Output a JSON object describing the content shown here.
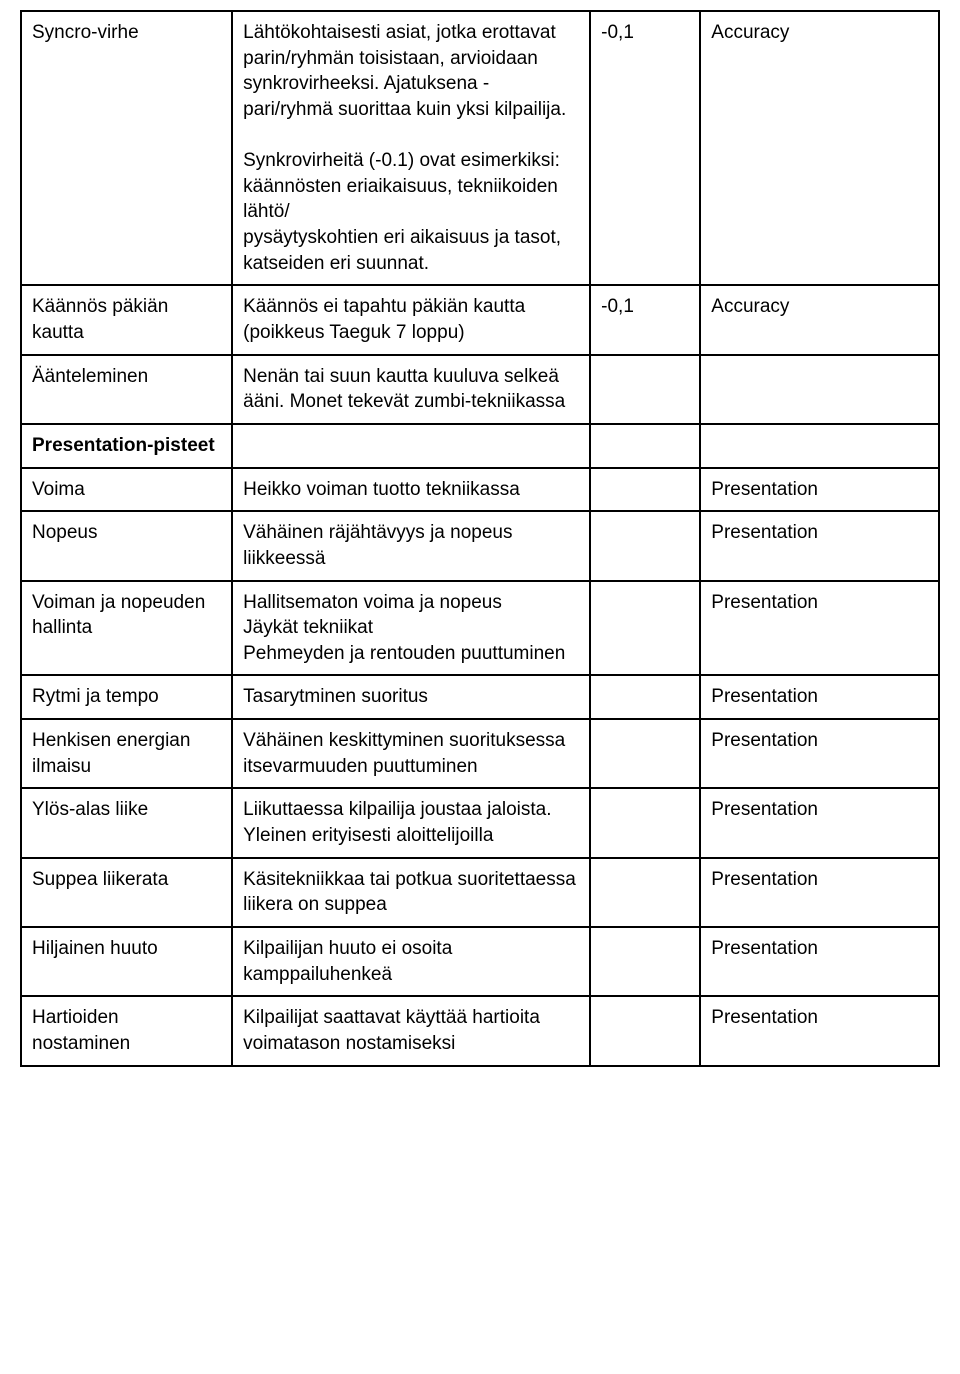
{
  "table": {
    "columns": {
      "widths_pct": [
        23,
        39,
        12,
        26
      ]
    },
    "border_color": "#000000",
    "background_color": "#ffffff",
    "text_color": "#000000",
    "font_family": "Arial",
    "font_size_pt": 14,
    "rows": [
      {
        "col1": "Syncro-virhe",
        "col2_p1": "Lähtökohtaisesti asiat, jotka erottavat parin/ryhmän toisistaan, arvioidaan synkrovirheeksi. Ajatuksena - pari/ryhmä suorittaa kuin yksi kilpailija.",
        "col2_p2": "Synkrovirheitä (-0.1) ovat esimerkiksi:\nkäännösten eriaikaisuus, tekniikoiden lähtö/\npysäytyskohtien eri aikaisuus ja tasot, katseiden eri suunnat.",
        "col3": "-0,1",
        "col4": "Accuracy"
      },
      {
        "col1": "Käännös päkiän kautta",
        "col2": "Käännös ei tapahtu päkiän kautta (poikkeus Taeguk 7 loppu)",
        "col3": "-0,1",
        "col4": "Accuracy"
      },
      {
        "col1": "Äänteleminen",
        "col2": "Nenän tai suun kautta kuuluva selkeä ääni. Monet tekevät zumbi-tekniikassa",
        "col3": "",
        "col4": ""
      },
      {
        "col1": "Presentation-pisteet",
        "col1_bold": true,
        "col2": "",
        "col3": "",
        "col4": ""
      },
      {
        "col1": "Voima",
        "col2": "Heikko voiman tuotto tekniikassa",
        "col3": "",
        "col4": "Presentation"
      },
      {
        "col1": "Nopeus",
        "col2": "Vähäinen räjähtävyys ja nopeus liikkeessä",
        "col3": "",
        "col4": "Presentation"
      },
      {
        "col1": "Voiman ja nopeuden hallinta",
        "col2": "Hallitsematon voima ja nopeus\nJäykät tekniikat\nPehmeyden ja rentouden puuttuminen",
        "col3": "",
        "col4": "Presentation"
      },
      {
        "col1": "Rytmi ja tempo",
        "col2": "Tasarytminen suoritus",
        "col3": "",
        "col4": "Presentation"
      },
      {
        "col1": "Henkisen energian ilmaisu",
        "col2": "Vähäinen keskittyminen suorituksessa\nitsevarmuuden puuttuminen",
        "col3": "",
        "col4": "Presentation"
      },
      {
        "col1": "Ylös-alas liike",
        "col2": "Liikuttaessa kilpailija joustaa jaloista. Yleinen erityisesti aloittelijoilla",
        "col3": "",
        "col4": "Presentation"
      },
      {
        "col1": "Suppea liikerata",
        "col2": "Käsitekniikkaa tai potkua suoritettaessa liikera on suppea",
        "col3": "",
        "col4": "Presentation"
      },
      {
        "col1": "Hiljainen huuto",
        "col2": "Kilpailijan huuto ei osoita kamppailuhenkeä",
        "col3": "",
        "col4": "Presentation"
      },
      {
        "col1": "Hartioiden nostaminen",
        "col2": "Kilpailijat saattavat käyttää hartioita voimatason nostamiseksi",
        "col3": "",
        "col4": "Presentation"
      }
    ]
  }
}
